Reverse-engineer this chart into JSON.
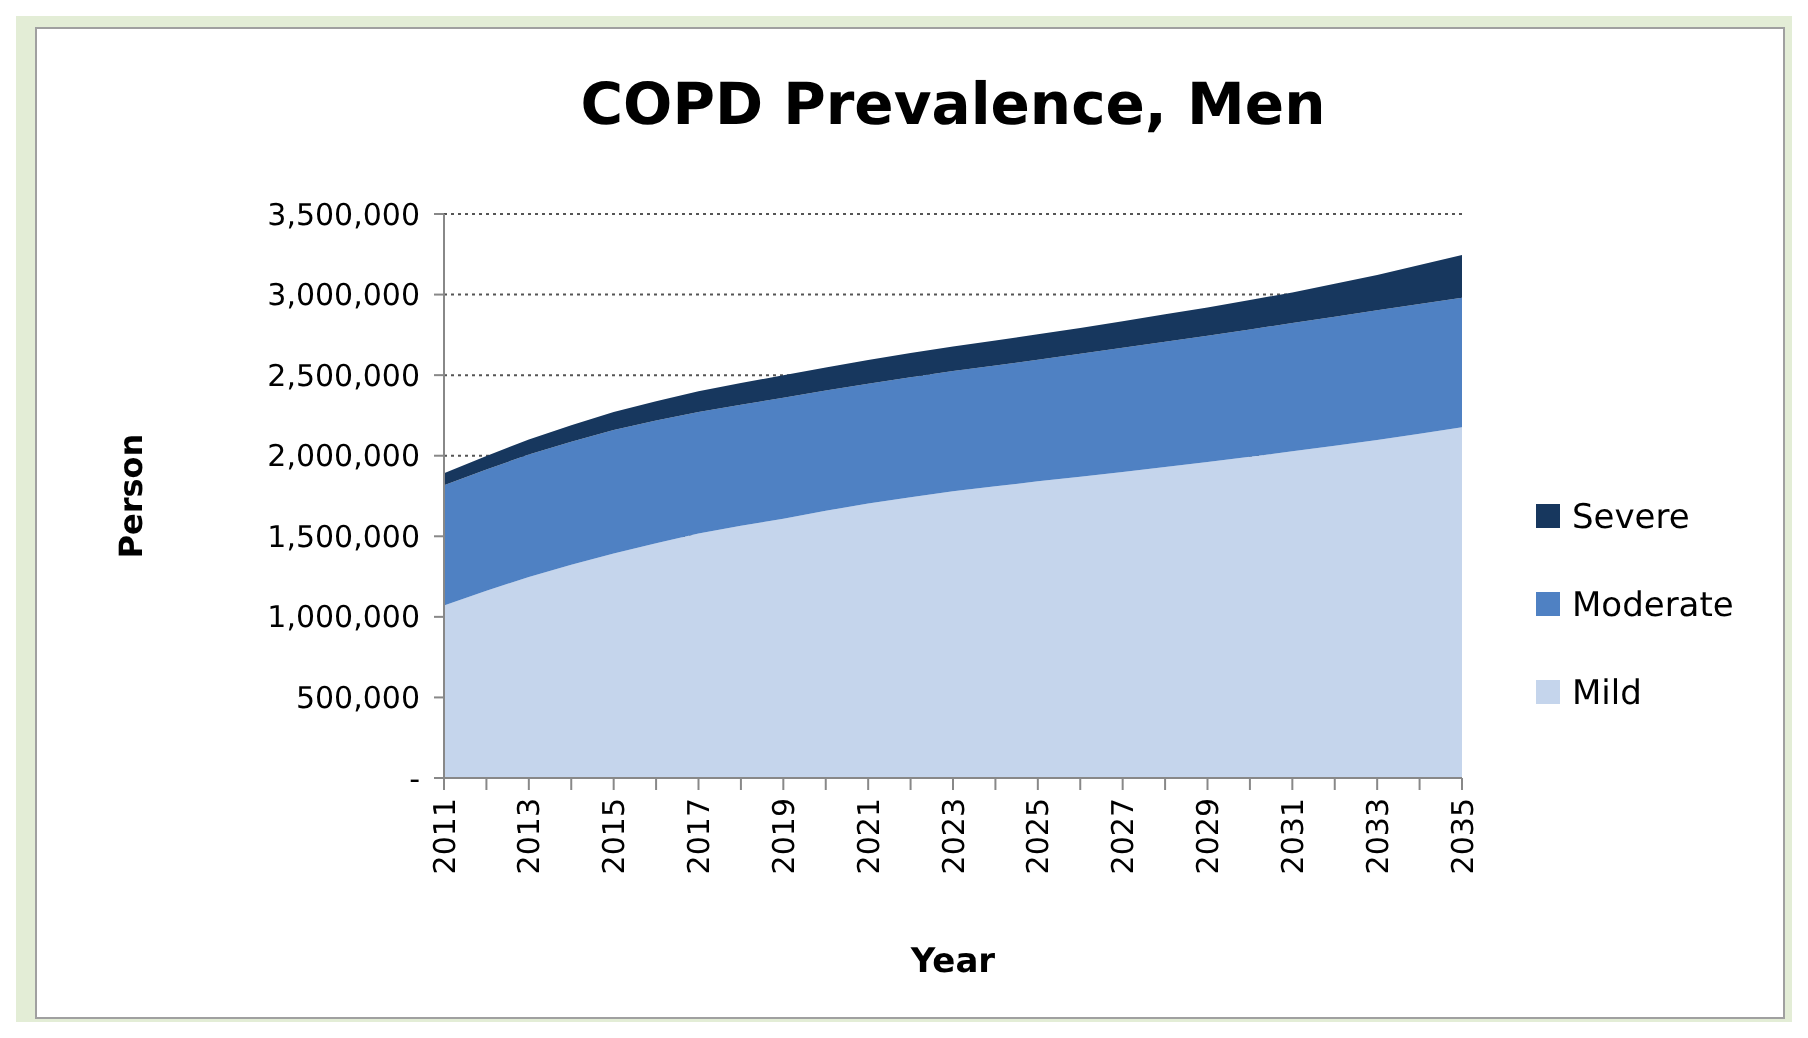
{
  "chart_data": {
    "type": "area",
    "title": "COPD Prevalence, Men",
    "xlabel": "Year",
    "ylabel": "Person",
    "stacked": true,
    "grid": "y",
    "legend": "right",
    "line_style": "dotted",
    "categories": [
      "2011",
      null,
      "2013",
      null,
      "2015",
      null,
      "2017",
      null,
      "2019",
      null,
      "2021",
      null,
      "2023",
      null,
      "2025",
      null,
      "2027",
      null,
      "2029",
      null,
      "2031",
      null,
      "2033",
      null,
      "2035"
    ],
    "ylim": [
      0,
      3500000
    ],
    "yticks": [
      {
        "value": 0,
        "label": "-"
      },
      {
        "value": 500000,
        "label": "500,000"
      },
      {
        "value": 1000000,
        "label": "1,000,000"
      },
      {
        "value": 1500000,
        "label": "1,500,000"
      },
      {
        "value": 2000000,
        "label": "2,000,000"
      },
      {
        "value": 2500000,
        "label": "2,500,000"
      },
      {
        "value": 3000000,
        "label": "3,000,000"
      },
      {
        "value": 3500000,
        "label": "3,500,000"
      }
    ],
    "series": [
      {
        "name": "Mild",
        "color": "#c5d5ec",
        "values": [
          1070000,
          1162000,
          1248000,
          1323000,
          1393000,
          1457000,
          1517000,
          1565000,
          1609000,
          1658000,
          1704000,
          1743000,
          1779000,
          1810000,
          1841000,
          1870000,
          1899000,
          1930000,
          1961000,
          1994000,
          2027000,
          2062000,
          2098000,
          2137000,
          2177000
        ]
      },
      {
        "name": "Moderate",
        "color": "#4f81c3",
        "values": [
          746000,
          753000,
          759000,
          763000,
          767000,
          761000,
          755000,
          752000,
          750000,
          746000,
          742000,
          744000,
          746000,
          750000,
          754000,
          762000,
          771000,
          778000,
          784000,
          790000,
          796000,
          800000,
          804000,
          804000,
          804000
        ]
      },
      {
        "name": "Severe",
        "color": "#17375e",
        "values": [
          75000,
          84000,
          93000,
          103000,
          112000,
          120000,
          128000,
          134000,
          140000,
          144000,
          148000,
          150000,
          152000,
          155000,
          158000,
          161000,
          165000,
          170000,
          175000,
          182000,
          190000,
          205000,
          220000,
          242000,
          265000
        ]
      }
    ]
  }
}
